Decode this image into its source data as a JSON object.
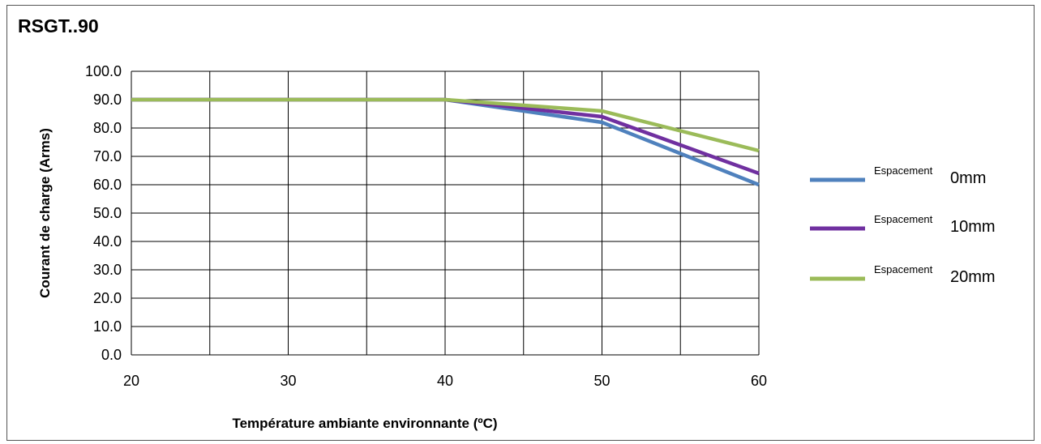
{
  "chart_data": {
    "type": "line",
    "title": "RSGT..90",
    "xlabel": "Température ambiante environnante (ºC)",
    "ylabel": "Courant de charge (Arms)",
    "xlim": [
      20,
      60
    ],
    "ylim": [
      0,
      100
    ],
    "x_ticks": [
      "20",
      "30",
      "40",
      "50",
      "60"
    ],
    "y_ticks": [
      "0.0",
      "10.0",
      "20.0",
      "30.0",
      "40.0",
      "50.0",
      "60.0",
      "70.0",
      "80.0",
      "90.0",
      "100.0"
    ],
    "grid": true,
    "legend_position": "right",
    "x": [
      20,
      25,
      30,
      35,
      40,
      45,
      50,
      55,
      60
    ],
    "series": [
      {
        "label_prefix": "Espacement",
        "label_suffix": "0mm",
        "color": "#4f81bd",
        "values": [
          90,
          90,
          90,
          90,
          90,
          86,
          82,
          71,
          60
        ]
      },
      {
        "label_prefix": "Espacement",
        "label_suffix": "10mm",
        "color": "#7030a0",
        "values": [
          90,
          90,
          90,
          90,
          90,
          87,
          84,
          74,
          64
        ]
      },
      {
        "label_prefix": "Espacement",
        "label_suffix": "20mm",
        "color": "#9bbb59",
        "values": [
          90,
          90,
          90,
          90,
          90,
          88,
          86,
          79,
          72
        ]
      }
    ]
  }
}
